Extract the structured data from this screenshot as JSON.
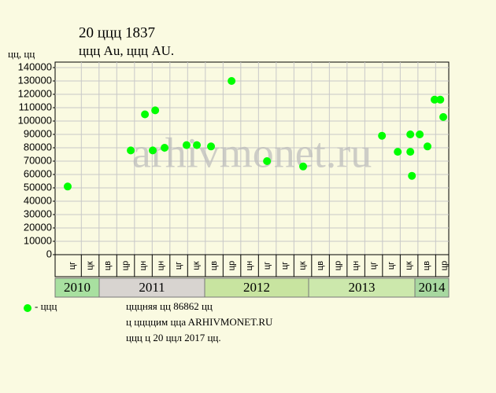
{
  "chart_data": {
    "type": "scatter",
    "title": "20 ццц 1837",
    "subtitle": "ццц Au, ццц AU.",
    "y_label": "цц, цц",
    "watermark": "arhivmonet.ru",
    "categories": [
      "цг",
      "цк",
      "цв",
      "цр",
      "цн",
      "цн",
      "цг",
      "цк",
      "цв",
      "цр",
      "цн",
      "цг",
      "цг",
      "цк",
      "цв",
      "цр",
      "цн",
      "цг",
      "цг",
      "цк",
      "цв",
      "цр"
    ],
    "years": [
      "2010",
      "2011",
      "2012",
      "2013",
      "2014"
    ],
    "series": [
      {
        "name": "- ццц",
        "color": "#00ff00",
        "x": [
          -0.27,
          3.29,
          4.09,
          4.53,
          4.67,
          5.2,
          6.44,
          7.02,
          7.82,
          8.98,
          10.98,
          13.02,
          17.47,
          18.36,
          19.07,
          19.07,
          19.16,
          19.6,
          20.04,
          20.44,
          20.76,
          20.93
        ],
        "values": [
          51000,
          78000,
          105000,
          78000,
          108000,
          80000,
          82000,
          82000,
          81000,
          130000,
          70000,
          66000,
          89000,
          77000,
          90000,
          77000,
          59000,
          90000,
          81000,
          116000,
          116000,
          103000
        ]
      }
    ],
    "xlim": [
      -0.98,
      21.24
    ],
    "ylim": [
      0,
      140000
    ],
    "yticks": [
      0,
      10000,
      20000,
      30000,
      40000,
      50000,
      60000,
      70000,
      80000,
      90000,
      100000,
      110000,
      120000,
      130000,
      140000
    ],
    "grid": true,
    "notes": [
      "цццняя цц 86862 цц",
      "ц ццццим ццa ARHIVMONET.RU",
      "ццц ц 20 ццл 2017 цц."
    ]
  }
}
